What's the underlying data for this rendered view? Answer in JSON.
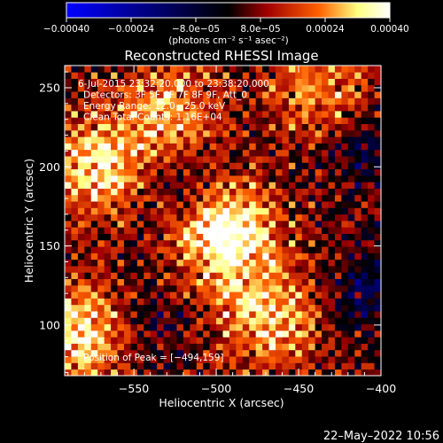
{
  "chart_data": {
    "type": "heatmap",
    "title": "Reconstructed RHESSI Image",
    "xlabel": "Heliocentric X (arcsec)",
    "ylabel": "Heliocentric Y (arcsec)",
    "xlim": [
      -592,
      -400
    ],
    "ylim": [
      68,
      264
    ],
    "x_ticks": [
      -550,
      -500,
      -450,
      -400
    ],
    "x_tick_labels": [
      "−550",
      "−500",
      "−450",
      "−400"
    ],
    "y_ticks": [
      100,
      150,
      200,
      250
    ],
    "y_tick_labels": [
      "100",
      "150",
      "200",
      "250"
    ],
    "colorbar": {
      "range": [
        -0.0004,
        0.0004
      ],
      "ticks": [
        -0.0004,
        -0.00024,
        -8e-05,
        8e-05,
        0.00024,
        0.0004
      ],
      "tick_labels": [
        "−0.00040",
        "−0.00024",
        "−8.0e−05",
        "8.0e−05",
        "0.00024",
        "0.00040"
      ],
      "units": "(photons cm⁻² s⁻¹ asec⁻²)",
      "colormap": [
        "#0000ff",
        "#000000",
        "#a00000",
        "#ff6000",
        "#ffff80",
        "#ffffff"
      ]
    },
    "annotations": [
      "6-Jul-2015 23:32:20.000 to 23:38:20.000",
      "Detectors: 3F 5F 6F 7F 8F 9F, Att_0",
      "Energy Range: 12.0 - 25.0 keV",
      "Clean     Total Counts: 1.16E+04"
    ],
    "peak_label": "Position of Peak = [−494,159]",
    "peak_position": [
      -494,
      159
    ],
    "bright_regions": [
      {
        "x": -494,
        "y": 159,
        "level": 0.00039
      },
      {
        "x": -575,
        "y": 200,
        "level": 0.00028
      },
      {
        "x": -585,
        "y": 95,
        "level": 0.0003
      },
      {
        "x": -470,
        "y": 105,
        "level": 0.00026
      },
      {
        "x": -530,
        "y": 235,
        "level": 0.00022
      },
      {
        "x": -440,
        "y": 250,
        "level": 0.00018
      }
    ],
    "negative_regions": [
      {
        "x": -520,
        "y": 185,
        "level": -0.00012
      },
      {
        "x": -410,
        "y": 120,
        "level": -0.00014
      },
      {
        "x": -405,
        "y": 210,
        "level": -0.00012
      },
      {
        "x": -540,
        "y": 100,
        "level": -8e-05
      }
    ]
  },
  "footer": {
    "date_stamp": "22–May–2022 10:56"
  }
}
